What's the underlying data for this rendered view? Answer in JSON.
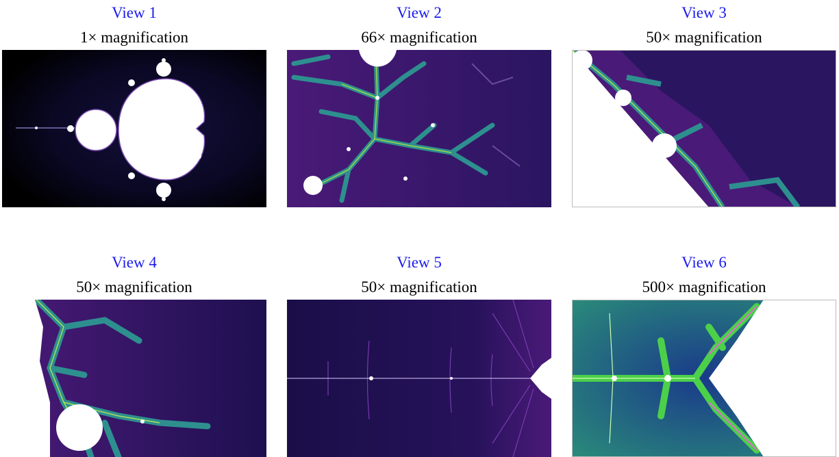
{
  "views": [
    {
      "title": "View 1",
      "caption": "1× magnification"
    },
    {
      "title": "View 2",
      "caption": "66× magnification"
    },
    {
      "title": "View 3",
      "caption": "50× magnification"
    },
    {
      "title": "View 4",
      "caption": "50× magnification"
    },
    {
      "title": "View 5",
      "caption": "50× magnification"
    },
    {
      "title": "View 6",
      "caption": "500× magnification"
    }
  ]
}
